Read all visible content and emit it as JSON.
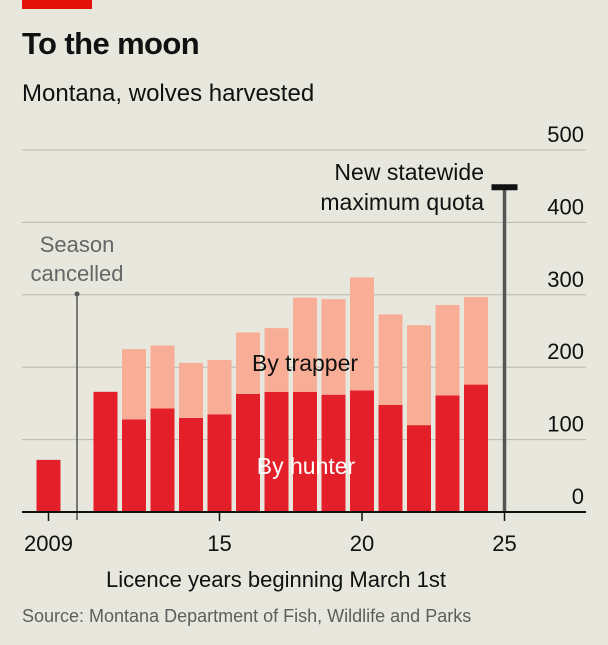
{
  "header": {
    "title": "To the moon",
    "subtitle": "Montana, wolves harvested"
  },
  "source": "Source: Montana Department of Fish, Wildlife and Parks",
  "colors": {
    "hunter": "#e3202a",
    "trapper": "#f8ae96",
    "background": "#e8e7dd",
    "accent": "#e3120b"
  },
  "chart_data": {
    "type": "bar",
    "stacked": true,
    "x": [
      2009,
      2010,
      2011,
      2012,
      2013,
      2014,
      2015,
      2016,
      2017,
      2018,
      2019,
      2020,
      2021,
      2022,
      2023,
      2024
    ],
    "series": [
      {
        "name": "By hunter",
        "values": [
          72,
          0,
          166,
          128,
          143,
          130,
          135,
          163,
          166,
          166,
          162,
          168,
          148,
          120,
          161,
          176
        ]
      },
      {
        "name": "By trapper",
        "values": [
          0,
          0,
          0,
          97,
          87,
          76,
          75,
          85,
          88,
          130,
          132,
          156,
          125,
          138,
          125,
          121
        ]
      }
    ],
    "xlabel": "Licence years beginning March 1st",
    "x_ticks": [
      "2009",
      "15",
      "20",
      "25"
    ],
    "x_tick_years": [
      2009,
      2015,
      2020,
      2025
    ],
    "y_ticks": [
      "0",
      "100",
      "200",
      "300",
      "400",
      "500"
    ],
    "ylim": [
      0,
      500
    ],
    "y_axis_side": "right",
    "grid": true,
    "annotations": [
      {
        "text": [
          "Season",
          "cancelled"
        ],
        "x": 2010
      },
      {
        "text": [
          "New statewide",
          "maximum quota"
        ],
        "x": 2025,
        "value": 450
      }
    ]
  }
}
